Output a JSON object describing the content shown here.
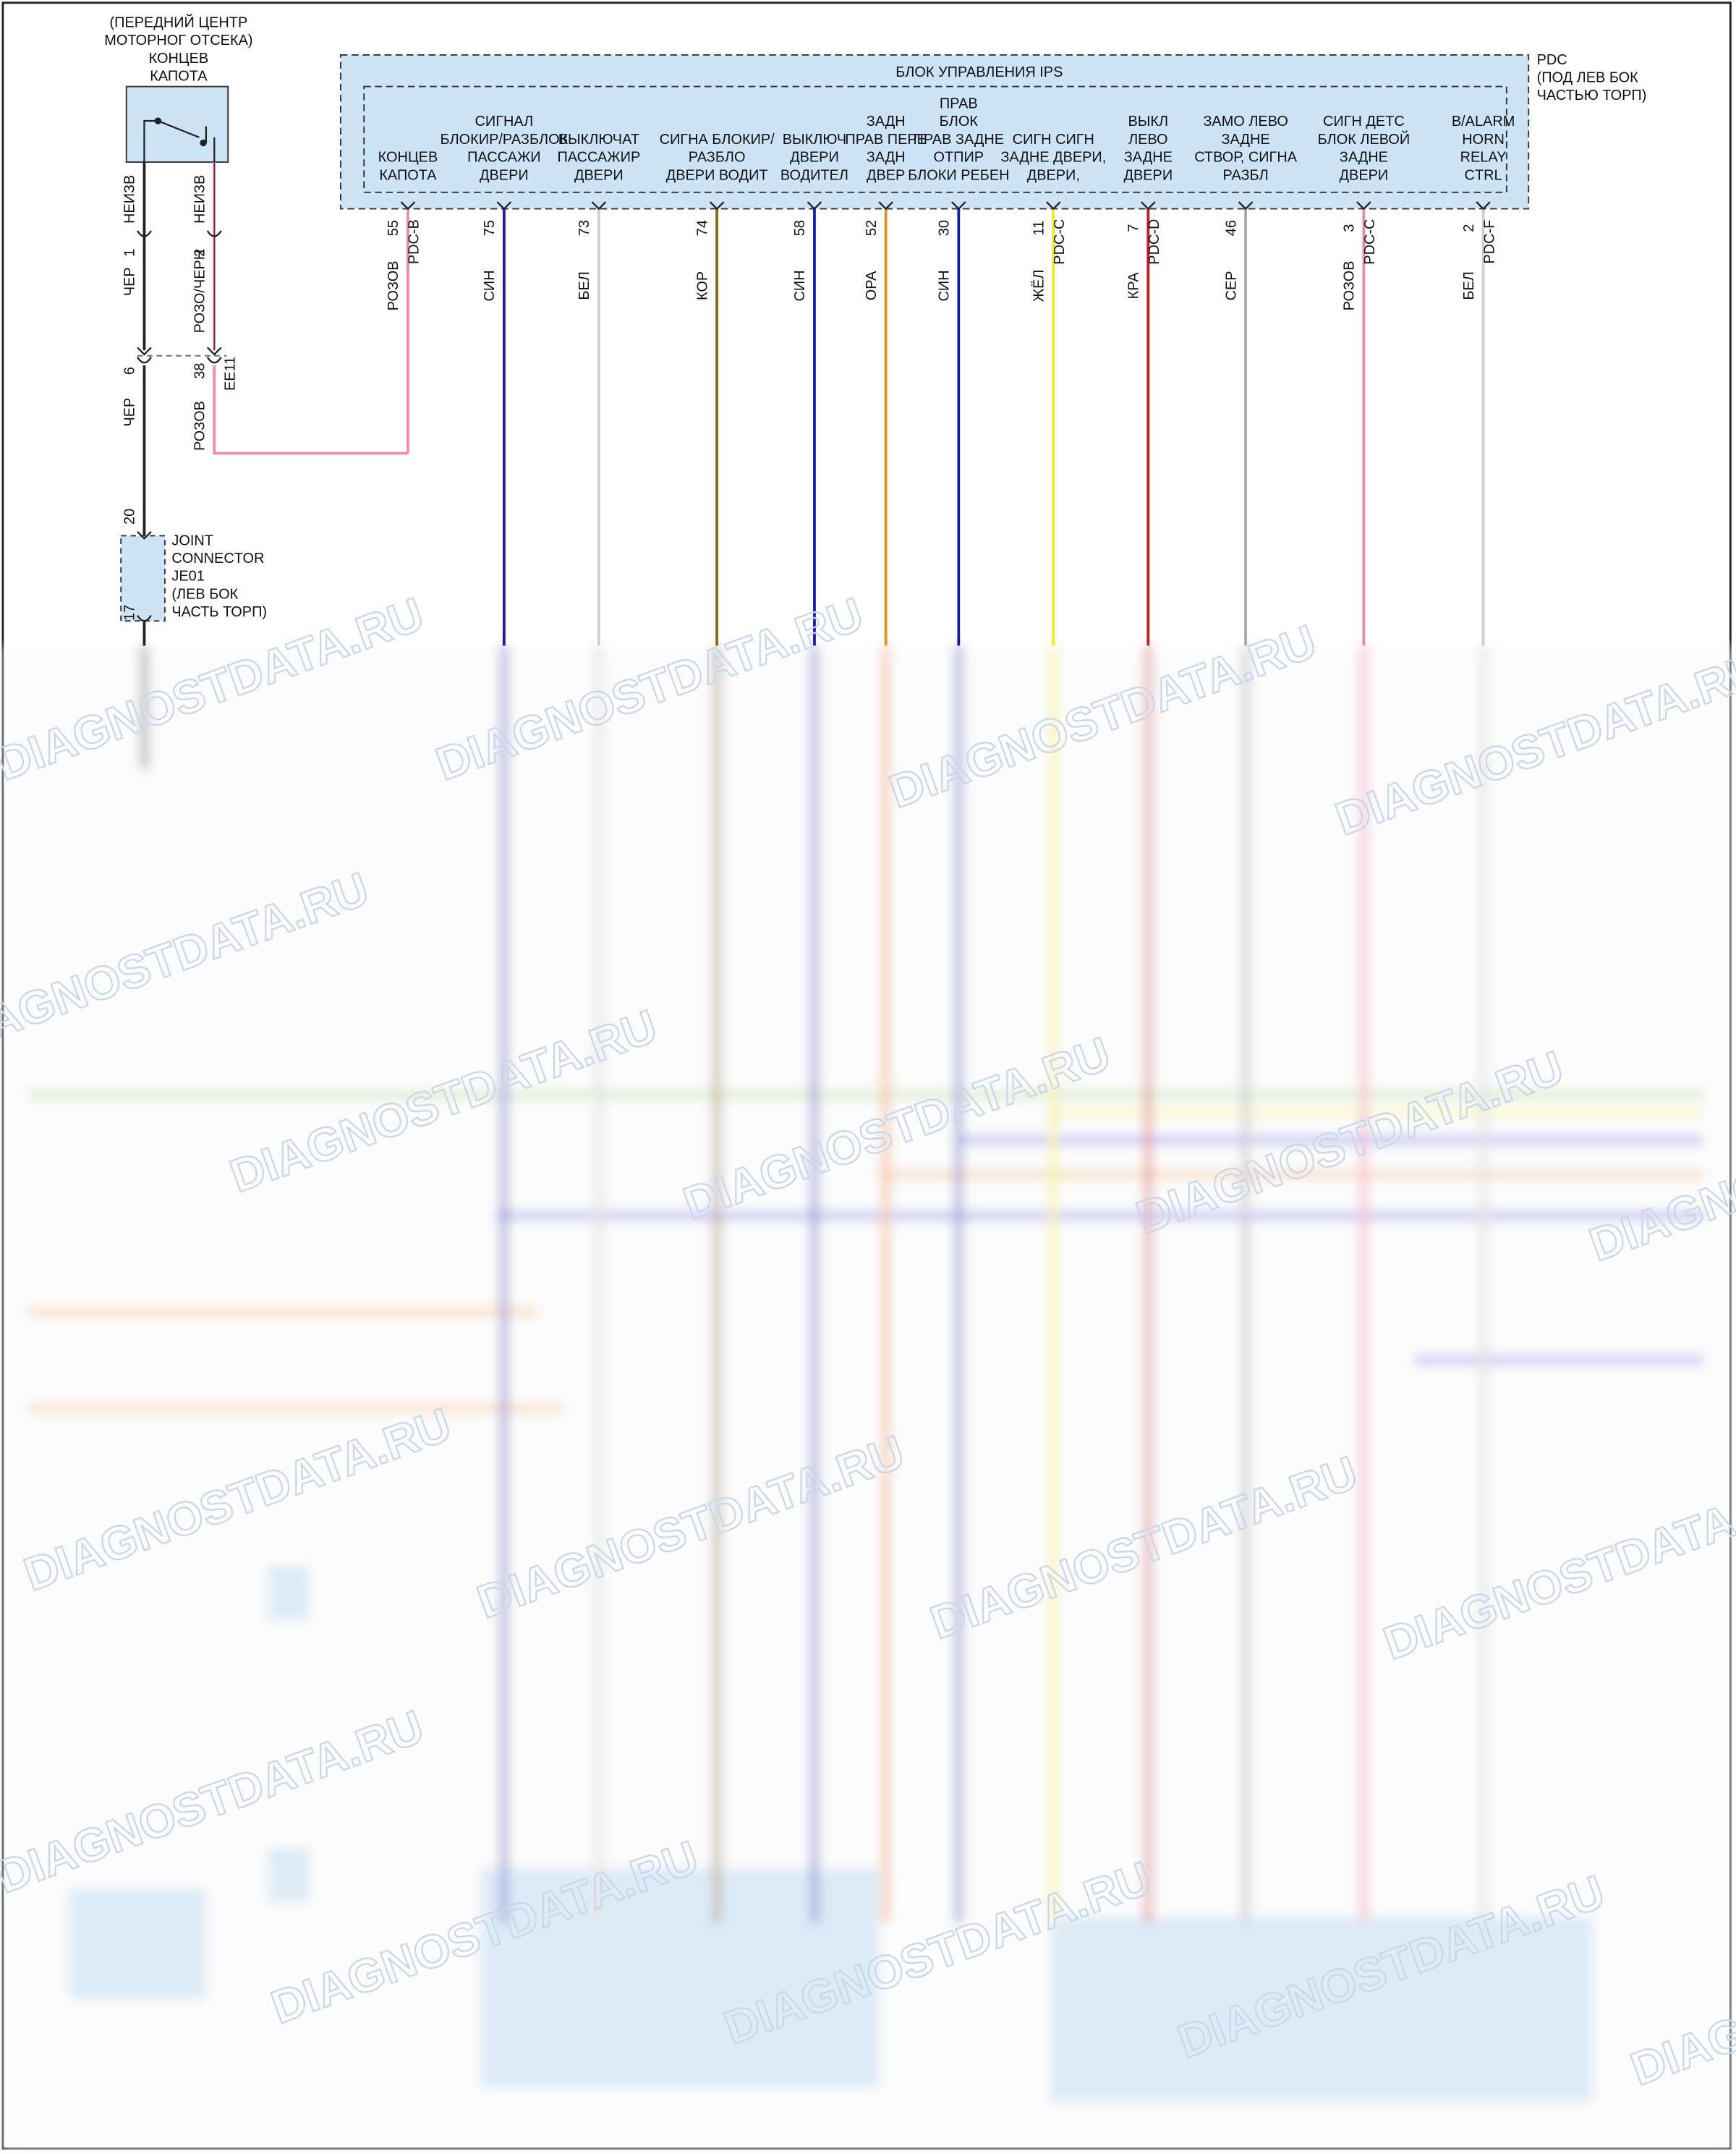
{
  "switch": {
    "label_lines": [
      "(ПЕРЕДНИЙ ЦЕНТР",
      "МОТОРНОГ ОТСЕКА)",
      "КОНЦЕВ",
      "КАПОТА"
    ],
    "pins": [
      {
        "number": "1",
        "label": "НЕИЗВ",
        "wire": "ЧЕР"
      },
      {
        "number": "2",
        "label": "НЕИЗВ",
        "wire": "РОЗО/ЧЕРН"
      }
    ]
  },
  "inline_connector": {
    "name": "EE11",
    "pins": [
      {
        "number": "6",
        "wire": "ЧЕР"
      },
      {
        "number": "38",
        "wire": "РОЗОВ"
      }
    ]
  },
  "joint_connector": {
    "label_lines": [
      "JOINT",
      "CONNECTOR",
      "JE01",
      "(ЛЕВ БОК",
      "ЧАСТЬ ТОРП)"
    ],
    "pin_in": "20",
    "pin_out": "17"
  },
  "module": {
    "connector": "PDC",
    "location_lines": [
      "(ПОД ЛЕВ БОК",
      "ЧАСТЬЮ ТОРП)"
    ],
    "title": "БЛОК УПРАВЛЕНИЯ IPS",
    "pins": [
      {
        "label_lines": [
          "КОНЦЕВ",
          "КАПОТА"
        ],
        "number": "55",
        "wire": "РОЗОВ",
        "connector": "PDC-B",
        "color": "#f08aa8"
      },
      {
        "label_lines": [
          "СИГНАЛ",
          "БЛОКИР/РАЗБЛОК",
          "ПАССАЖИ",
          "ДВЕРИ"
        ],
        "number": "75",
        "wire": "СИН",
        "color": "#1a1ab8"
      },
      {
        "label_lines": [
          "ВЫКЛЮЧАТ",
          "ПАССАЖИР",
          "ДВЕРИ"
        ],
        "number": "73",
        "wire": "БЕЛ",
        "color": "#cfcfcf"
      },
      {
        "label_lines": [
          "СИГНА БЛОКИР/",
          "РАЗБЛО",
          "ДВЕРИ ВОДИТ"
        ],
        "number": "74",
        "wire": "КОР",
        "color": "#8a6a10"
      },
      {
        "label_lines": [
          "ВЫКЛЮЧ",
          "ДВЕРИ",
          "ВОДИТЕЛ"
        ],
        "number": "58",
        "wire": "СИН",
        "color": "#1a1ab8"
      },
      {
        "label_lines": [
          "ЗАДН",
          "ПРАВ ПЕРЕ",
          "ЗАДН",
          "ДВЕР"
        ],
        "number": "52",
        "wire": "ОРА",
        "color": "#f0901a"
      },
      {
        "label_lines": [
          "ПРАВ",
          "БЛОК",
          "ПРАВ ЗАДНЕ",
          "ОТПИР",
          "БЛОКИ РЕБЕН"
        ],
        "number": "30",
        "wire": "СИН",
        "color": "#1a1ab8"
      },
      {
        "label_lines": [
          "СИГН СИГН",
          "ЗАДНЕ ДВЕРИ,",
          "ДВЕРИ,"
        ],
        "number": "11",
        "wire": "ЖЁЛ",
        "connector": "PDC-C",
        "color": "#f2e81a"
      },
      {
        "label_lines": [
          "ВЫКЛ",
          "ЛЕВО",
          "ЗАДНЕ",
          "ДВЕРИ"
        ],
        "number": "7",
        "wire": "КРА",
        "connector": "PDC-D",
        "color": "#d01818"
      },
      {
        "label_lines": [
          "ЗАМО ЛЕВО",
          "ЗАДНЕ",
          "СТВОР, СИГНА",
          "РАЗБЛ"
        ],
        "number": "46",
        "wire": "СЕР",
        "color": "#a8a8a8"
      },
      {
        "label_lines": [
          "СИГН ДЕТС",
          "БЛОК ЛЕВОЙ",
          "ЗАДНЕ",
          "ДВЕРИ"
        ],
        "number": "3",
        "wire": "РОЗОВ",
        "connector": "PDC-C",
        "color": "#f08aa8"
      },
      {
        "label_lines": [
          "B/ALARM",
          "HORN",
          "RELAY",
          "CTRL"
        ],
        "number": "2",
        "wire": "БЕЛ",
        "connector": "PDC-F",
        "color": "#cfcfcf"
      }
    ]
  },
  "watermark": "DIAGNOSTDATA.RU"
}
